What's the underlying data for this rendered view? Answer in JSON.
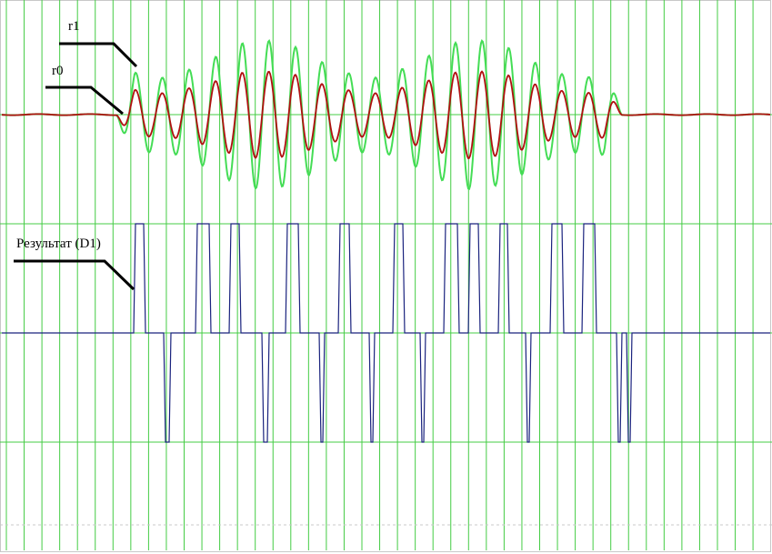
{
  "labels": {
    "r1": "r1",
    "r0": "r0",
    "result": "Результат (D1)"
  }
}
